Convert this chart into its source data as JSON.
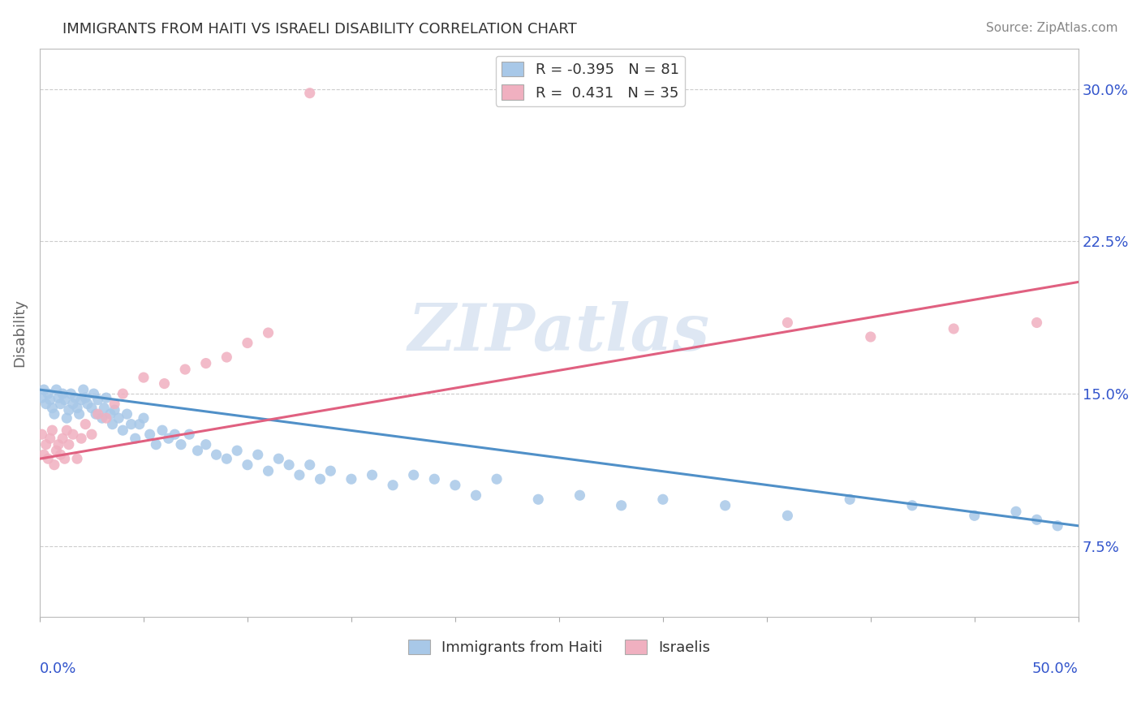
{
  "title": "IMMIGRANTS FROM HAITI VS ISRAELI DISABILITY CORRELATION CHART",
  "source": "Source: ZipAtlas.com",
  "ylabel": "Disability",
  "watermark": "ZIPatlas",
  "legend_haiti_R": -0.395,
  "legend_haiti_N": 81,
  "legend_israelis_R": 0.431,
  "legend_israelis_N": 35,
  "haiti_color": "#a8c8e8",
  "israelis_color": "#f0b0c0",
  "haiti_line_color": "#5090c8",
  "israelis_line_color": "#e06080",
  "xmin": 0.0,
  "xmax": 0.5,
  "ymin": 0.04,
  "ymax": 0.32,
  "ytick_vals": [
    0.075,
    0.15,
    0.225,
    0.3
  ],
  "ytick_labels": [
    "7.5%",
    "15.0%",
    "22.5%",
    "30.0%"
  ],
  "haiti_line_x0": 0.0,
  "haiti_line_y0": 0.152,
  "haiti_line_x1": 0.5,
  "haiti_line_y1": 0.085,
  "israelis_line_x0": 0.0,
  "israelis_line_y0": 0.118,
  "israelis_line_x1": 0.5,
  "israelis_line_y1": 0.205,
  "haiti_x": [
    0.001,
    0.002,
    0.003,
    0.004,
    0.005,
    0.006,
    0.007,
    0.008,
    0.009,
    0.01,
    0.011,
    0.012,
    0.013,
    0.014,
    0.015,
    0.016,
    0.017,
    0.018,
    0.019,
    0.02,
    0.021,
    0.022,
    0.023,
    0.025,
    0.026,
    0.027,
    0.028,
    0.03,
    0.031,
    0.032,
    0.034,
    0.035,
    0.036,
    0.038,
    0.04,
    0.042,
    0.044,
    0.046,
    0.048,
    0.05,
    0.053,
    0.056,
    0.059,
    0.062,
    0.065,
    0.068,
    0.072,
    0.076,
    0.08,
    0.085,
    0.09,
    0.095,
    0.1,
    0.105,
    0.11,
    0.115,
    0.12,
    0.125,
    0.13,
    0.135,
    0.14,
    0.15,
    0.16,
    0.17,
    0.18,
    0.19,
    0.2,
    0.21,
    0.22,
    0.24,
    0.26,
    0.28,
    0.3,
    0.33,
    0.36,
    0.39,
    0.42,
    0.45,
    0.47,
    0.48,
    0.49
  ],
  "haiti_y": [
    0.148,
    0.152,
    0.145,
    0.15,
    0.147,
    0.143,
    0.14,
    0.152,
    0.148,
    0.145,
    0.15,
    0.147,
    0.138,
    0.142,
    0.15,
    0.145,
    0.148,
    0.143,
    0.14,
    0.147,
    0.152,
    0.148,
    0.145,
    0.143,
    0.15,
    0.14,
    0.147,
    0.138,
    0.143,
    0.148,
    0.14,
    0.135,
    0.142,
    0.138,
    0.132,
    0.14,
    0.135,
    0.128,
    0.135,
    0.138,
    0.13,
    0.125,
    0.132,
    0.128,
    0.13,
    0.125,
    0.13,
    0.122,
    0.125,
    0.12,
    0.118,
    0.122,
    0.115,
    0.12,
    0.112,
    0.118,
    0.115,
    0.11,
    0.115,
    0.108,
    0.112,
    0.108,
    0.11,
    0.105,
    0.11,
    0.108,
    0.105,
    0.1,
    0.108,
    0.098,
    0.1,
    0.095,
    0.098,
    0.095,
    0.09,
    0.098,
    0.095,
    0.09,
    0.092,
    0.088,
    0.085
  ],
  "israelis_x": [
    0.001,
    0.002,
    0.003,
    0.004,
    0.005,
    0.006,
    0.007,
    0.008,
    0.009,
    0.01,
    0.011,
    0.012,
    0.013,
    0.014,
    0.016,
    0.018,
    0.02,
    0.022,
    0.025,
    0.028,
    0.032,
    0.036,
    0.04,
    0.05,
    0.06,
    0.07,
    0.08,
    0.09,
    0.1,
    0.11,
    0.13,
    0.36,
    0.4,
    0.44,
    0.48
  ],
  "israelis_y": [
    0.13,
    0.12,
    0.125,
    0.118,
    0.128,
    0.132,
    0.115,
    0.122,
    0.125,
    0.12,
    0.128,
    0.118,
    0.132,
    0.125,
    0.13,
    0.118,
    0.128,
    0.135,
    0.13,
    0.14,
    0.138,
    0.145,
    0.15,
    0.158,
    0.155,
    0.162,
    0.165,
    0.168,
    0.175,
    0.18,
    0.298,
    0.185,
    0.178,
    0.182,
    0.185
  ],
  "bg_color": "#ffffff",
  "grid_color": "#cccccc",
  "title_color": "#333333",
  "source_color": "#888888",
  "watermark_color": "#c8d8ec",
  "legend_text_color": "#333333",
  "r_value_color": "#3355cc"
}
